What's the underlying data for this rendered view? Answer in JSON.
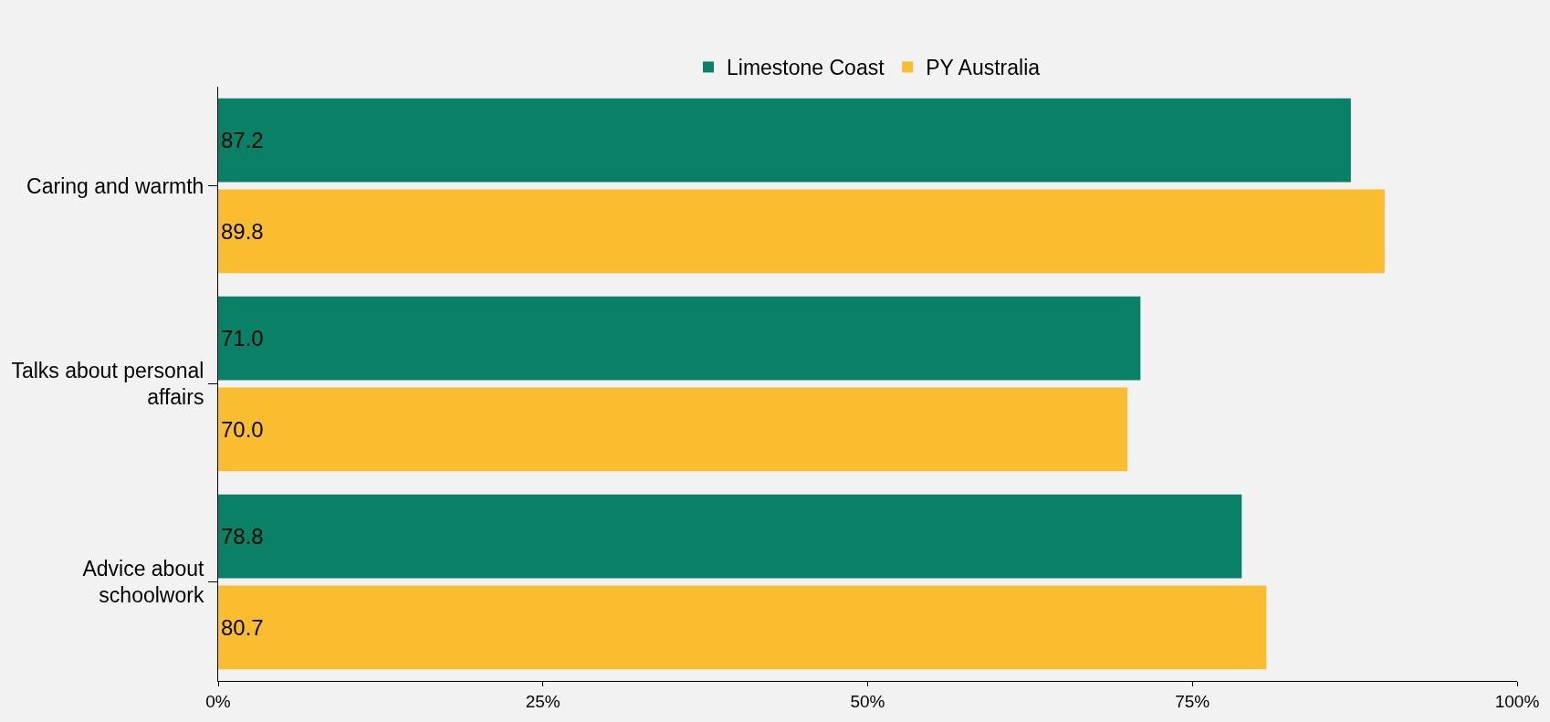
{
  "chart_data": {
    "type": "bar",
    "orientation": "horizontal",
    "categories": [
      "Caring and warmth",
      "Talks about personal affairs",
      "Advice about schoolwork"
    ],
    "series": [
      {
        "name": "Limestone Coast",
        "color": "#0a8166",
        "values": [
          87.2,
          71.0,
          78.8
        ],
        "value_labels": [
          "87.2",
          "71.0",
          "78.8"
        ]
      },
      {
        "name": "PY Australia",
        "color": "#fbbd30",
        "values": [
          89.8,
          70.0,
          80.7
        ],
        "value_labels": [
          "89.8",
          "70.0",
          "80.7"
        ]
      }
    ],
    "xlim": [
      0,
      100
    ],
    "xticks": [
      {
        "value": 0,
        "label": "0%"
      },
      {
        "value": 25,
        "label": "25%"
      },
      {
        "value": 50,
        "label": "50%"
      },
      {
        "value": 75,
        "label": "75%"
      },
      {
        "value": 100,
        "label": "100%"
      }
    ],
    "grid": false,
    "legend": "top"
  }
}
